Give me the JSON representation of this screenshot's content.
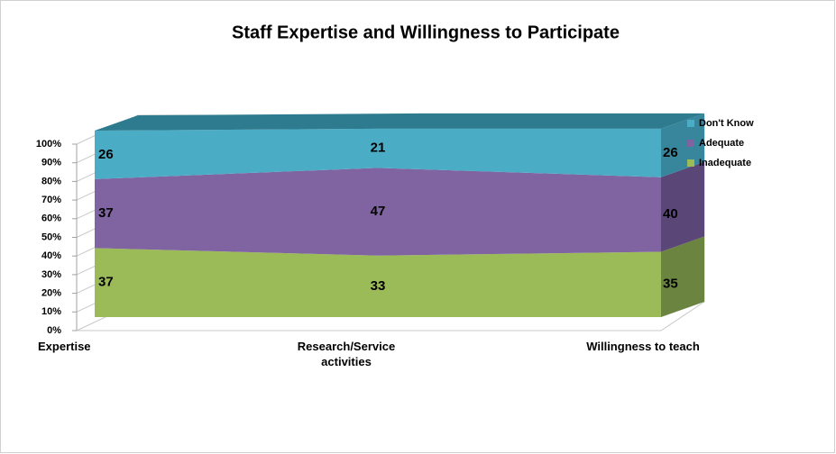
{
  "chart_data": {
    "type": "area3d",
    "title": "Staff Expertise and Willingness to Participate",
    "categories": [
      "Expertise",
      "Research/Service activities",
      "Willingness to teach"
    ],
    "series": [
      {
        "name": "Inadequate",
        "color": "#9bbb59",
        "side_color": "#6b8540",
        "values": [
          37,
          33,
          35
        ]
      },
      {
        "name": "Adequate",
        "color": "#8064a2",
        "side_color": "#5a4677",
        "values": [
          37,
          47,
          40
        ]
      },
      {
        "name": "Don't Know",
        "color": "#4bacc6",
        "side_color": "#37869b",
        "top_color": "#2e7b8f",
        "values": [
          26,
          21,
          26
        ]
      }
    ],
    "ylim": [
      0,
      100
    ],
    "yticks": [
      {
        "value": 0,
        "label": "0%"
      },
      {
        "value": 10,
        "label": "10%"
      },
      {
        "value": 20,
        "label": "20%"
      },
      {
        "value": 30,
        "label": "30%"
      },
      {
        "value": 40,
        "label": "40%"
      },
      {
        "value": 50,
        "label": "50%"
      },
      {
        "value": 60,
        "label": "60%"
      },
      {
        "value": 70,
        "label": "70%"
      },
      {
        "value": 80,
        "label": "80%"
      },
      {
        "value": 90,
        "label": "90%"
      },
      {
        "value": 100,
        "label": "100%"
      }
    ],
    "grid": true,
    "legend": "right"
  }
}
